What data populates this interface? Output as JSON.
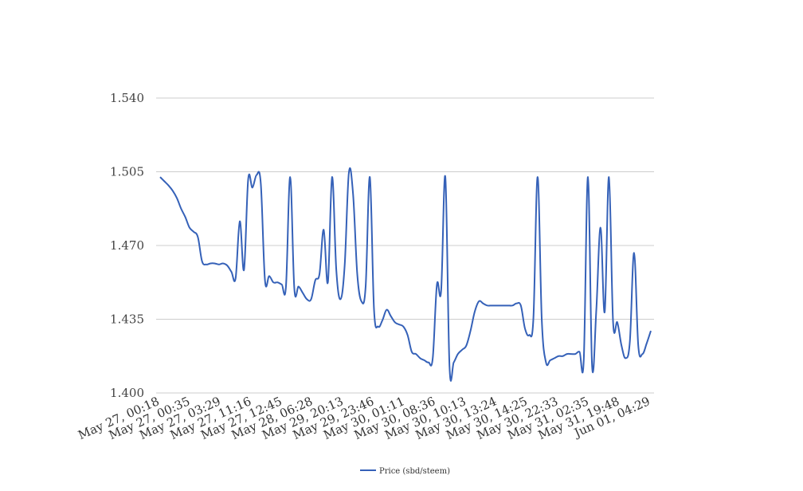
{
  "chart_data": {
    "type": "line",
    "title": "",
    "xlabel": "",
    "ylabel": "",
    "ylim": [
      1.4,
      1.54
    ],
    "yticks": [
      "1.400",
      "1.435",
      "1.470",
      "1.505",
      "1.540"
    ],
    "xticks": [
      "May 27, 00:18",
      "May 27, 00:35",
      "May 27, 03:29",
      "May 27, 11:16",
      "May 27, 12:45",
      "May 28, 06:28",
      "May 29, 20:13",
      "May 29, 23:46",
      "May 30, 01:11",
      "May 30, 08:36",
      "May 30, 10:13",
      "May 30, 13:24",
      "May 30, 14:25",
      "May 30, 22:33",
      "May 31, 02:35",
      "May 31, 19:48",
      "Jun 01, 04:29"
    ],
    "grid": true,
    "legend_position": "bottom-center",
    "color": "#3561b8",
    "series": [
      {
        "name": "Price (sbd/steem)",
        "values": [
          1.5025,
          1.5005,
          1.4985,
          1.496,
          1.4925,
          1.4875,
          1.4835,
          1.4785,
          1.4765,
          1.474,
          1.4625,
          1.461,
          1.4615,
          1.4615,
          1.461,
          1.4615,
          1.4605,
          1.4575,
          1.4545,
          1.4815,
          1.4585,
          1.5015,
          1.4975,
          1.5035,
          1.4995,
          1.4535,
          1.4555,
          1.4525,
          1.4525,
          1.4515,
          1.4505,
          1.5025,
          1.4495,
          1.4505,
          1.4475,
          1.4445,
          1.4445,
          1.4535,
          1.4565,
          1.4775,
          1.4525,
          1.5025,
          1.4585,
          1.4445,
          1.4605,
          1.5045,
          1.4945,
          1.4565,
          1.4435,
          1.4505,
          1.5025,
          1.4395,
          1.4315,
          1.4345,
          1.4395,
          1.4365,
          1.4335,
          1.4325,
          1.4315,
          1.4275,
          1.4195,
          1.4185,
          1.4165,
          1.4155,
          1.4145,
          1.4165,
          1.4515,
          1.4485,
          1.5025,
          1.4125,
          1.4145,
          1.4185,
          1.4205,
          1.4225,
          1.4295,
          1.4385,
          1.4435,
          1.4425,
          1.4415,
          1.4415,
          1.4415,
          1.4415,
          1.4415,
          1.4415,
          1.4415,
          1.4425,
          1.4415,
          1.4305,
          1.4275,
          1.4355,
          1.5025,
          1.4345,
          1.4145,
          1.4155,
          1.4165,
          1.4175,
          1.4175,
          1.4185,
          1.4185,
          1.4185,
          1.4195,
          1.4155,
          1.5025,
          1.4125,
          1.4395,
          1.4785,
          1.4385,
          1.5025,
          1.4335,
          1.4335,
          1.4225,
          1.4165,
          1.4245,
          1.4665,
          1.4225,
          1.4185,
          1.4235,
          1.4295
        ]
      }
    ]
  }
}
